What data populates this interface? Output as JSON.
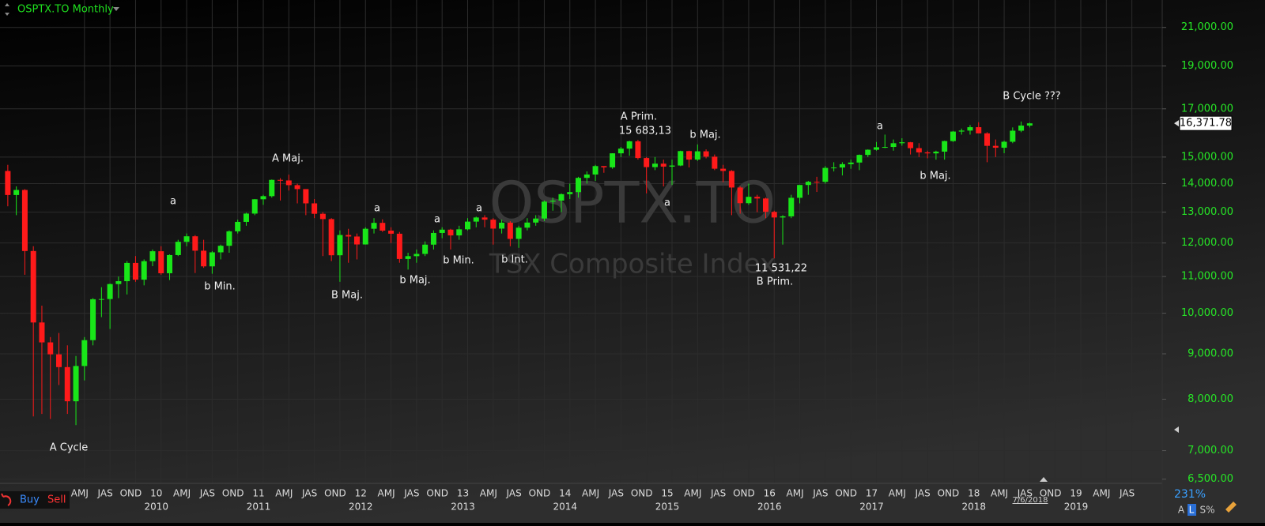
{
  "chart_data": {
    "type": "candlestick",
    "title": "OSPTX.TO Monthly",
    "watermark": "OSPTX.TO",
    "subtitle": "TSX Composite Index",
    "log_scale": true,
    "grid": true,
    "up_color": "#19e619",
    "down_color": "#ff1a1a",
    "ylim": [
      6430,
      22550
    ],
    "yticks": [
      {
        "value": 6500,
        "label": "6,500.00"
      },
      {
        "value": 7000,
        "label": "7,000.00"
      },
      {
        "value": 8000,
        "label": "8,000.00"
      },
      {
        "value": 9000,
        "label": "9,000.00"
      },
      {
        "value": 10000,
        "label": "10,000.00"
      },
      {
        "value": 11000,
        "label": "11,000.00"
      },
      {
        "value": 12000,
        "label": "12,000.00"
      },
      {
        "value": 13000,
        "label": "13,000.00"
      },
      {
        "value": 14000,
        "label": "14,000.00"
      },
      {
        "value": 15000,
        "label": "15,000.00"
      },
      {
        "value": 17000,
        "label": "17,000.00"
      },
      {
        "value": 19000,
        "label": "19,000.00"
      },
      {
        "value": 21000,
        "label": "21,000.00"
      }
    ],
    "xticks": [
      {
        "value": "2009-04",
        "label": "AMJ"
      },
      {
        "value": "2009-07",
        "label": "JAS"
      },
      {
        "value": "2009-10",
        "label": "OND"
      },
      {
        "value": "2010-01",
        "label": "10"
      },
      {
        "value": "2010-04",
        "label": "AMJ"
      },
      {
        "value": "2010-07",
        "label": "JAS"
      },
      {
        "value": "2010-10",
        "label": "OND"
      },
      {
        "value": "2011-01",
        "label": "11"
      },
      {
        "value": "2011-04",
        "label": "AMJ"
      },
      {
        "value": "2011-07",
        "label": "JAS"
      },
      {
        "value": "2011-10",
        "label": "OND"
      },
      {
        "value": "2012-01",
        "label": "12"
      },
      {
        "value": "2012-04",
        "label": "AMJ"
      },
      {
        "value": "2012-07",
        "label": "JAS"
      },
      {
        "value": "2012-10",
        "label": "OND"
      },
      {
        "value": "2013-01",
        "label": "13"
      },
      {
        "value": "2013-04",
        "label": "AMJ"
      },
      {
        "value": "2013-07",
        "label": "JAS"
      },
      {
        "value": "2013-10",
        "label": "OND"
      },
      {
        "value": "2014-01",
        "label": "14"
      },
      {
        "value": "2014-04",
        "label": "AMJ"
      },
      {
        "value": "2014-07",
        "label": "JAS"
      },
      {
        "value": "2014-10",
        "label": "OND"
      },
      {
        "value": "2015-01",
        "label": "15"
      },
      {
        "value": "2015-04",
        "label": "AMJ"
      },
      {
        "value": "2015-07",
        "label": "JAS"
      },
      {
        "value": "2015-10",
        "label": "OND"
      },
      {
        "value": "2016-01",
        "label": "16"
      },
      {
        "value": "2016-04",
        "label": "AMJ"
      },
      {
        "value": "2016-07",
        "label": "JAS"
      },
      {
        "value": "2016-10",
        "label": "OND"
      },
      {
        "value": "2017-01",
        "label": "17"
      },
      {
        "value": "2017-04",
        "label": "AMJ"
      },
      {
        "value": "2017-07",
        "label": "JAS"
      },
      {
        "value": "2017-10",
        "label": "OND"
      },
      {
        "value": "2018-01",
        "label": "18"
      },
      {
        "value": "2018-04",
        "label": "AMJ"
      },
      {
        "value": "2018-07",
        "label": "JAS"
      },
      {
        "value": "2018-10",
        "label": "OND"
      },
      {
        "value": "2019-01",
        "label": "19"
      },
      {
        "value": "2019-04",
        "label": "AMJ"
      },
      {
        "value": "2019-07",
        "label": "JAS"
      }
    ],
    "year_ticks": [
      {
        "value": "2010-01",
        "label": "2010"
      },
      {
        "value": "2011-01",
        "label": "2011"
      },
      {
        "value": "2012-01",
        "label": "2012"
      },
      {
        "value": "2013-01",
        "label": "2013"
      },
      {
        "value": "2014-01",
        "label": "2014"
      },
      {
        "value": "2015-01",
        "label": "2015"
      },
      {
        "value": "2016-01",
        "label": "2016"
      },
      {
        "value": "2017-01",
        "label": "2017"
      },
      {
        "value": "2018-01",
        "label": "2018"
      },
      {
        "value": "2019-01",
        "label": "2019"
      }
    ],
    "x": [
      "2008-07",
      "2008-08",
      "2008-09",
      "2008-10",
      "2008-11",
      "2008-12",
      "2009-01",
      "2009-02",
      "2009-03",
      "2009-04",
      "2009-05",
      "2009-06",
      "2009-07",
      "2009-08",
      "2009-09",
      "2009-10",
      "2009-11",
      "2009-12",
      "2010-01",
      "2010-02",
      "2010-03",
      "2010-04",
      "2010-05",
      "2010-06",
      "2010-07",
      "2010-08",
      "2010-09",
      "2010-10",
      "2010-11",
      "2010-12",
      "2011-01",
      "2011-02",
      "2011-03",
      "2011-04",
      "2011-05",
      "2011-06",
      "2011-07",
      "2011-08",
      "2011-09",
      "2011-10",
      "2011-11",
      "2011-12",
      "2012-01",
      "2012-02",
      "2012-03",
      "2012-04",
      "2012-05",
      "2012-06",
      "2012-07",
      "2012-08",
      "2012-09",
      "2012-10",
      "2012-11",
      "2012-12",
      "2013-01",
      "2013-02",
      "2013-03",
      "2013-04",
      "2013-05",
      "2013-06",
      "2013-07",
      "2013-08",
      "2013-09",
      "2013-10",
      "2013-11",
      "2013-12",
      "2014-01",
      "2014-02",
      "2014-03",
      "2014-04",
      "2014-05",
      "2014-06",
      "2014-07",
      "2014-08",
      "2014-09",
      "2014-10",
      "2014-11",
      "2014-12",
      "2015-01",
      "2015-02",
      "2015-03",
      "2015-04",
      "2015-05",
      "2015-06",
      "2015-07",
      "2015-08",
      "2015-09",
      "2015-10",
      "2015-11",
      "2015-12",
      "2016-01",
      "2016-02",
      "2016-03",
      "2016-04",
      "2016-05",
      "2016-06",
      "2016-07",
      "2016-08",
      "2016-09",
      "2016-10",
      "2016-11",
      "2016-12",
      "2017-01",
      "2017-02",
      "2017-03",
      "2017-04",
      "2017-05",
      "2017-06",
      "2017-07",
      "2017-08",
      "2017-09",
      "2017-10",
      "2017-11",
      "2017-12",
      "2018-01",
      "2018-02",
      "2018-03",
      "2018-04",
      "2018-05",
      "2018-06",
      "2018-07"
    ],
    "open": [
      14467,
      13593,
      13771,
      11753,
      9763,
      9271,
      8988,
      8695,
      7957,
      8720,
      9325,
      10370,
      10375,
      10787,
      10868,
      11395,
      10911,
      11447,
      11746,
      11094,
      11630,
      12038,
      12211,
      11763,
      11294,
      11713,
      11914,
      12369,
      12676,
      12953,
      13443,
      13552,
      14137,
      14116,
      13945,
      13803,
      13301,
      12946,
      12769,
      11624,
      12252,
      12204,
      11955,
      12452,
      12644,
      12392,
      12293,
      11513,
      11597,
      11665,
      11949,
      12317,
      12423,
      12239,
      12434,
      12685,
      12822,
      12750,
      12457,
      12650,
      12129,
      12487,
      12654,
      12787,
      13361,
      13395,
      13622,
      13695,
      14210,
      14335,
      14652,
      14604,
      15146,
      15331,
      15626,
      14961,
      14613,
      14745,
      14632,
      14674,
      15234,
      14902,
      15225,
      15014,
      14553,
      14468,
      13859,
      13307,
      13529,
      13470,
      13010,
      12822,
      12860,
      13494,
      13951,
      14066,
      14065,
      14583,
      14598,
      14725,
      14787,
      15083,
      15288,
      15386,
      15399,
      15548,
      15586,
      15350,
      15182,
      15144,
      15212,
      15635,
      16026,
      16067,
      16209,
      15952,
      15443,
      15367,
      15608,
      16062,
      16278
    ],
    "high": [
      14700,
      13900,
      13800,
      11900,
      10200,
      9400,
      9500,
      9200,
      8950,
      9400,
      10400,
      10700,
      10800,
      11000,
      11450,
      11600,
      11500,
      11800,
      11900,
      11650,
      12100,
      12300,
      12250,
      12100,
      11750,
      11950,
      12400,
      12750,
      12980,
      13450,
      13600,
      14150,
      14200,
      14330,
      14000,
      13800,
      13450,
      13000,
      12800,
      12400,
      12450,
      12300,
      12500,
      12800,
      12760,
      12500,
      12350,
      11700,
      11800,
      12050,
      12400,
      12500,
      12450,
      12550,
      12800,
      12850,
      12900,
      12800,
      12750,
      12700,
      12550,
      12800,
      12900,
      13400,
      13500,
      13650,
      14000,
      14250,
      14450,
      14700,
      14650,
      15150,
      15400,
      15650,
      15685,
      15000,
      15000,
      14900,
      14900,
      15250,
      15250,
      15500,
      15300,
      15100,
      14700,
      14500,
      13900,
      14000,
      13600,
      13500,
      13050,
      12900,
      13600,
      13950,
      14100,
      14250,
      14650,
      14800,
      14800,
      14900,
      15100,
      15300,
      15600,
      15900,
      15700,
      15750,
      15600,
      15550,
      15250,
      15250,
      15650,
      16050,
      16150,
      16300,
      16420,
      16000,
      15700,
      15650,
      16200,
      16450,
      16400
    ],
    "low": [
      13200,
      12900,
      11050,
      7650,
      7700,
      7600,
      8300,
      7700,
      7480,
      8400,
      9200,
      9900,
      9600,
      10400,
      10500,
      10850,
      10750,
      11300,
      11050,
      10900,
      11600,
      11900,
      11100,
      11250,
      11080,
      11500,
      11700,
      12300,
      12550,
      12900,
      13250,
      13500,
      13400,
      13750,
      13300,
      12900,
      12800,
      11600,
      11450,
      10850,
      11400,
      11500,
      11950,
      12300,
      12350,
      12000,
      11400,
      11200,
      11400,
      11600,
      11800,
      12150,
      11800,
      12100,
      12400,
      12500,
      12500,
      11950,
      12300,
      11900,
      11850,
      12400,
      12550,
      12700,
      13050,
      13000,
      13450,
      13500,
      14000,
      14100,
      14400,
      14550,
      15000,
      15050,
      14900,
      13650,
      14500,
      13900,
      13950,
      14650,
      14600,
      14850,
      14950,
      14500,
      14050,
      12900,
      12950,
      13250,
      13000,
      12800,
      11531,
      11950,
      12800,
      13300,
      13600,
      13700,
      14000,
      14450,
      14300,
      14550,
      14500,
      15000,
      15250,
      15350,
      15250,
      15450,
      15100,
      15000,
      14950,
      14900,
      14900,
      15600,
      15900,
      15900,
      15950,
      14800,
      15000,
      15150,
      15550,
      16000,
      16200
    ],
    "close": [
      13593,
      13771,
      11753,
      9763,
      9271,
      8988,
      8695,
      7957,
      8720,
      9325,
      10370,
      10375,
      10787,
      10868,
      11395,
      10911,
      11447,
      11746,
      11094,
      11630,
      12038,
      12211,
      11763,
      11294,
      11713,
      11914,
      12369,
      12676,
      12953,
      13443,
      13552,
      14137,
      14116,
      13945,
      13803,
      13301,
      12946,
      12769,
      11624,
      12252,
      12204,
      11955,
      12452,
      12644,
      12392,
      12293,
      11513,
      11597,
      11665,
      11949,
      12317,
      12423,
      12239,
      12434,
      12685,
      12822,
      12750,
      12457,
      12650,
      12129,
      12487,
      12654,
      12787,
      13361,
      13395,
      13622,
      13695,
      14210,
      14335,
      14652,
      14604,
      15146,
      15331,
      15626,
      14961,
      14613,
      14745,
      14632,
      14674,
      15234,
      14902,
      15225,
      15014,
      14553,
      14468,
      13859,
      13307,
      13529,
      13470,
      13010,
      12822,
      12860,
      13494,
      13951,
      14066,
      14065,
      14583,
      14598,
      14725,
      14787,
      15083,
      15288,
      15386,
      15399,
      15548,
      15586,
      15350,
      15182,
      15144,
      15212,
      15635,
      16026,
      16067,
      16209,
      15952,
      15443,
      15367,
      15608,
      16062,
      16278,
      16371.78
    ],
    "current_price": {
      "value": 16371.78,
      "label": "16,371.78"
    },
    "annotations": [
      "A Cycle",
      "a",
      "b Min.",
      "A Maj.",
      "B Maj.",
      "a",
      "b Maj.",
      "a",
      "b Min.",
      "a",
      "b Int.",
      "A Prim.",
      "15 683,13",
      "a",
      "b Maj.",
      "11 531,22",
      "B Prim.",
      "a",
      "b Maj.",
      "B Cycle ???"
    ],
    "date_label": "7/6/2018",
    "zoom": "231%"
  },
  "ui": {
    "buy": "Buy",
    "sell": "Sell",
    "scale_buttons": [
      "A",
      "L",
      "S%"
    ]
  }
}
